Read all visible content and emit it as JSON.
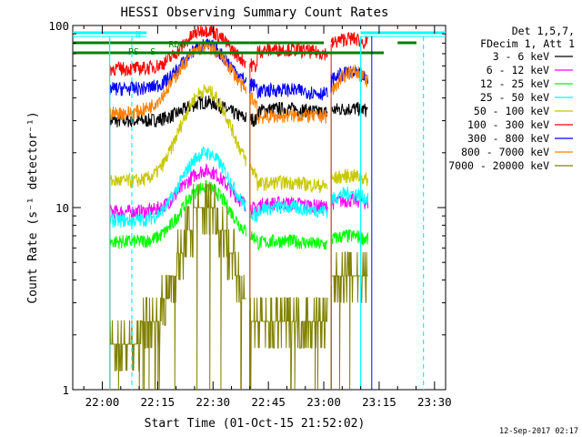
{
  "chart_data": {
    "type": "line",
    "title": "HESSI Observing Summary Count Rates",
    "xlabel": "Start Time (01-Oct-15 21:52:02)",
    "ylabel": "Count Rate (s⁻¹ detector⁻¹)",
    "y_scale": "log",
    "ylim": [
      1,
      100
    ],
    "xlim": [
      "21:52",
      "23:33"
    ],
    "x_ticks": [
      "22:00",
      "22:15",
      "22:30",
      "22:45",
      "23:00",
      "23:15",
      "23:30"
    ],
    "y_ticks": [
      "1",
      "10",
      "100"
    ],
    "grid": false,
    "legend_position": "top-right",
    "legend_header": [
      "Det 1,5,7,",
      "FDecim 1, Att 1"
    ],
    "footer_date": "12-Sep-2017 02:17",
    "flag_labels": [
      {
        "text": "N",
        "color": "#00ffff"
      },
      {
        "text": "RD0",
        "color": "#008000"
      },
      {
        "text": "PS",
        "color": "#008000"
      },
      {
        "text": "S",
        "color": "#008000"
      }
    ],
    "series": [
      {
        "name": "3 - 6 keV",
        "color": "#000000",
        "shape": "hump",
        "low": 30,
        "peak": 38,
        "mid": 33,
        "peak2": 35
      },
      {
        "name": "6 - 12 keV",
        "color": "#ff00ff",
        "shape": "hump",
        "low": 9.5,
        "peak": 16,
        "mid": 10,
        "peak2": 11
      },
      {
        "name": "12 - 25 keV",
        "color": "#00ff00",
        "shape": "hump",
        "low": 6.5,
        "peak": 13,
        "mid": 6.2,
        "peak2": 7
      },
      {
        "name": "25 - 50 keV",
        "color": "#00ffff",
        "shape": "hump",
        "low": 8.5,
        "peak": 20,
        "mid": 9.5,
        "peak2": 12
      },
      {
        "name": "50 - 100 keV",
        "color": "#c8c800",
        "shape": "hump",
        "low": 14,
        "peak": 44,
        "mid": 13,
        "peak2": 15
      },
      {
        "name": "100 - 300 keV",
        "color": "#ff0000",
        "shape": "hump",
        "low": 58,
        "peak": 95,
        "mid": 70,
        "peak2": 85
      },
      {
        "name": "300 - 800 keV",
        "color": "#0000ff",
        "shape": "hump",
        "low": 45,
        "peak": 78,
        "mid": 42,
        "peak2": 55
      },
      {
        "name": "800 - 7000 keV",
        "color": "#ff8000",
        "shape": "arch",
        "low": 33,
        "peak": 76,
        "mid": 30,
        "peak2": 56
      },
      {
        "name": "7000 - 20000 keV",
        "color": "#808000",
        "shape": "steps",
        "low": 2,
        "peak": 10,
        "mid": 2.5,
        "peak2": 4.5
      }
    ]
  }
}
